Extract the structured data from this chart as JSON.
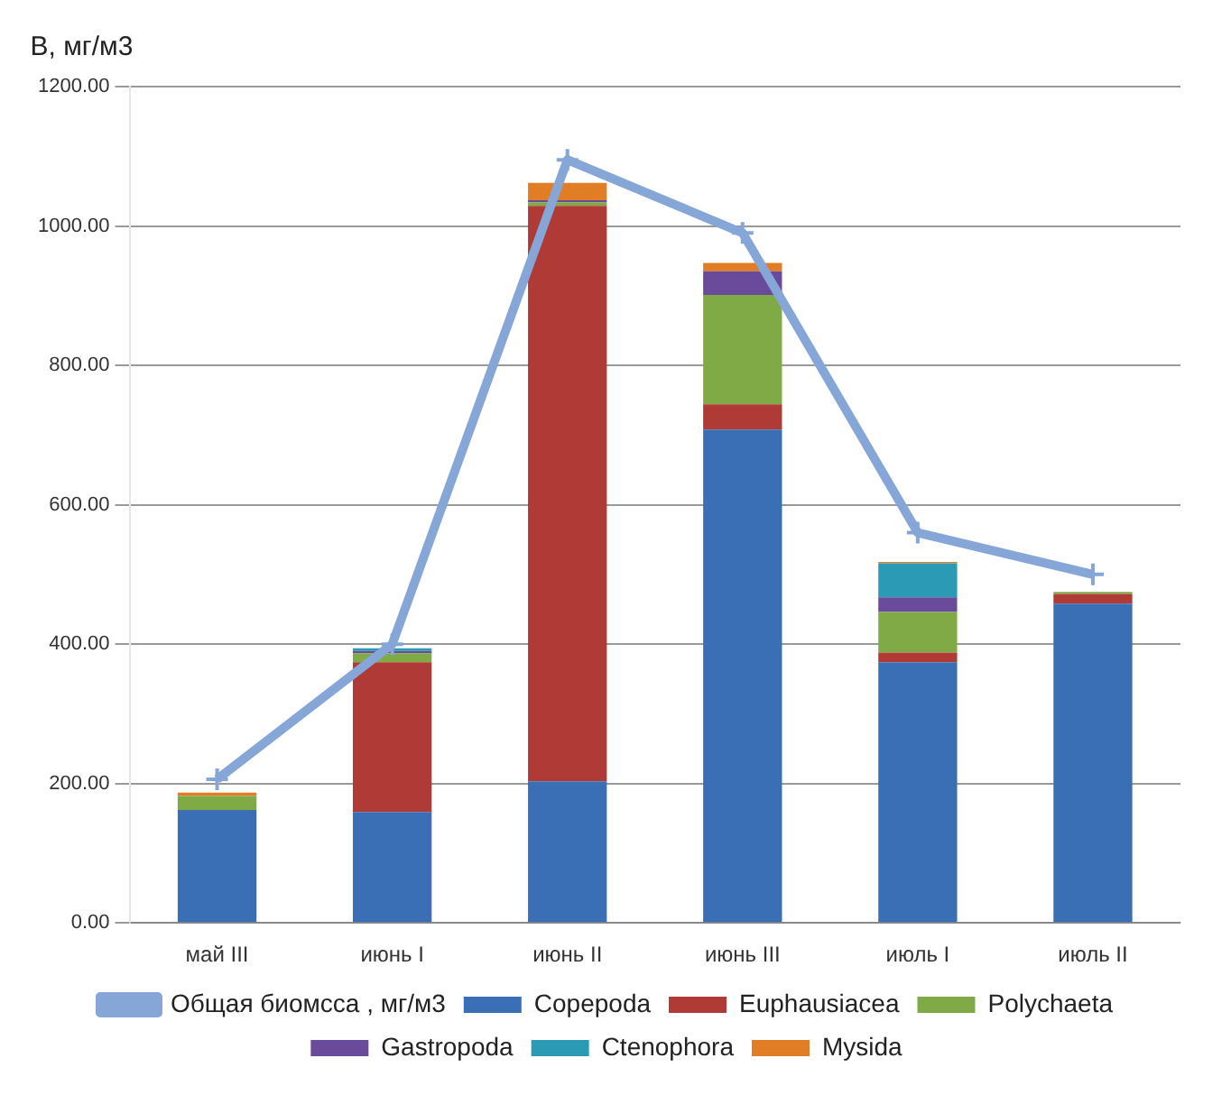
{
  "chart_data": {
    "type": "bar",
    "stacked": true,
    "ylabel": "B, мг/м3",
    "categories": [
      "май III",
      "июнь I",
      "июнь II",
      "июнь III",
      "июль I",
      "июль II"
    ],
    "series": [
      {
        "name": "Copepoda",
        "color": "#3a6fb5",
        "values": [
          162,
          159,
          203,
          708,
          374,
          458
        ]
      },
      {
        "name": "Euphausiacea",
        "color": "#b03a35",
        "values": [
          0,
          215,
          826,
          36,
          14,
          14
        ]
      },
      {
        "name": "Polychaeta",
        "color": "#7faa45",
        "values": [
          20,
          13,
          5,
          157,
          58,
          3
        ]
      },
      {
        "name": "Gastropoda",
        "color": "#6a4a9a",
        "values": [
          0,
          3,
          3,
          34,
          21,
          0
        ]
      },
      {
        "name": "Ctenophora",
        "color": "#2a9ab5",
        "values": [
          0,
          4,
          0,
          0,
          49,
          0
        ]
      },
      {
        "name": "Mysida",
        "color": "#e07d25",
        "values": [
          5,
          0,
          25,
          12,
          2,
          0
        ]
      },
      {
        "name": "Общая биомсса , мг/м3",
        "type": "line",
        "color": "#86a6d8",
        "values": [
          206,
          400,
          1095,
          990,
          560,
          500
        ]
      }
    ],
    "ylim": [
      0,
      1200
    ],
    "yticks": [
      {
        "value": 0,
        "label": "0.00"
      },
      {
        "value": 200,
        "label": "200.00"
      },
      {
        "value": 400,
        "label": "400.00"
      },
      {
        "value": 600,
        "label": "600.00"
      },
      {
        "value": 800,
        "label": "800.00"
      },
      {
        "value": 1000,
        "label": "1000.00"
      },
      {
        "value": 1200,
        "label": "1200.00"
      }
    ],
    "grid": "y",
    "legend": "bottom",
    "marker": "cross",
    "line_style": "solid"
  }
}
